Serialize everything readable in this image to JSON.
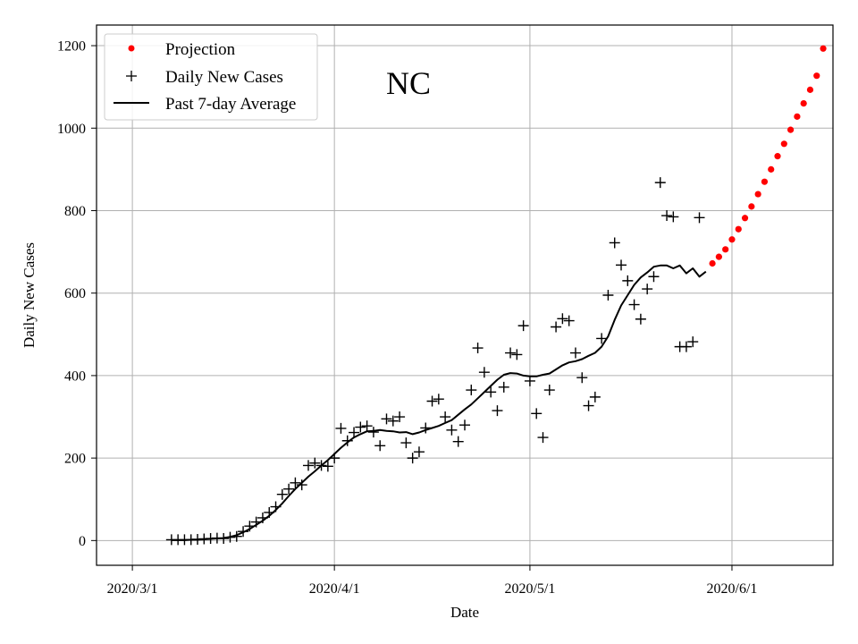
{
  "chart_data": {
    "type": "line",
    "title": "NC",
    "xlabel": "Date",
    "ylabel": "Daily New Cases",
    "xlim": [
      -5.5,
      107.5
    ],
    "ylim": [
      -60,
      1250
    ],
    "grid": true,
    "legend_position": "top-left",
    "x_ticks": [
      {
        "day": 0,
        "label": "2020/3/1"
      },
      {
        "day": 31,
        "label": "2020/4/1"
      },
      {
        "day": 61,
        "label": "2020/5/1"
      },
      {
        "day": 92,
        "label": "2020/6/1"
      }
    ],
    "y_ticks": [
      0,
      200,
      400,
      600,
      800,
      1000,
      1200
    ],
    "series": [
      {
        "name": "Projection",
        "style": "dots",
        "color": "#ff0000",
        "x": [
          89,
          90,
          91,
          92,
          93,
          94,
          95,
          96,
          97,
          98,
          99,
          100,
          101,
          102,
          103,
          104,
          105,
          106
        ],
        "y": [
          672,
          688,
          706,
          730,
          755,
          782,
          810,
          840,
          870,
          900,
          932,
          962,
          996,
          1028,
          1060,
          1093,
          1127,
          1193
        ]
      },
      {
        "name": "Daily New Cases",
        "style": "plus",
        "color": "#000000",
        "x": [
          6,
          7,
          8,
          9,
          10,
          11,
          12,
          13,
          14,
          15,
          16,
          17,
          18,
          19,
          20,
          21,
          22,
          23,
          24,
          25,
          26,
          27,
          28,
          29,
          30,
          31,
          32,
          33,
          34,
          35,
          36,
          37,
          38,
          39,
          40,
          41,
          42,
          43,
          44,
          45,
          46,
          47,
          48,
          49,
          50,
          51,
          52,
          53,
          54,
          55,
          56,
          57,
          58,
          59,
          60,
          61,
          62,
          63,
          64,
          65,
          66,
          67,
          68,
          69,
          70,
          71,
          72,
          73,
          74,
          75,
          76,
          77,
          78,
          79,
          80,
          81,
          82,
          83,
          84,
          85,
          86,
          87
        ],
        "y": [
          2,
          2,
          2,
          2,
          3,
          4,
          5,
          6,
          5,
          8,
          10,
          22,
          35,
          45,
          55,
          68,
          82,
          112,
          125,
          140,
          135,
          182,
          188,
          182,
          180,
          200,
          272,
          242,
          262,
          275,
          278,
          263,
          230,
          295,
          290,
          300,
          237,
          200,
          215,
          273,
          338,
          343,
          300,
          268,
          240,
          280,
          365,
          467,
          408,
          360,
          315,
          372,
          455,
          451,
          521,
          387,
          308,
          250,
          365,
          518,
          538,
          533,
          455,
          395,
          327,
          348,
          490,
          595,
          722,
          668,
          630,
          572,
          537,
          610,
          640,
          868,
          788,
          785,
          470,
          470,
          482,
          783
        ]
      },
      {
        "name": "Past 7-day Average",
        "style": "line",
        "color": "#000000",
        "x": [
          6,
          7,
          8,
          9,
          10,
          11,
          12,
          13,
          14,
          15,
          16,
          17,
          18,
          19,
          20,
          21,
          22,
          23,
          24,
          25,
          26,
          27,
          28,
          29,
          30,
          31,
          32,
          33,
          34,
          35,
          36,
          37,
          38,
          39,
          40,
          41,
          42,
          43,
          44,
          45,
          46,
          47,
          48,
          49,
          50,
          51,
          52,
          53,
          54,
          55,
          56,
          57,
          58,
          59,
          60,
          61,
          62,
          63,
          64,
          65,
          66,
          67,
          68,
          69,
          70,
          71,
          72,
          73,
          74,
          75,
          76,
          77,
          78,
          79,
          80,
          81,
          82,
          83,
          84,
          85,
          86,
          87,
          88
        ],
        "y": [
          1,
          1,
          1,
          2,
          2,
          3,
          4,
          5,
          6,
          9,
          13,
          20,
          28,
          38,
          48,
          60,
          74,
          90,
          108,
          125,
          140,
          155,
          168,
          182,
          195,
          210,
          225,
          238,
          250,
          258,
          265,
          266,
          268,
          266,
          265,
          262,
          263,
          258,
          262,
          268,
          273,
          278,
          285,
          292,
          305,
          318,
          330,
          345,
          360,
          375,
          390,
          402,
          406,
          405,
          400,
          398,
          398,
          402,
          405,
          415,
          425,
          432,
          435,
          440,
          448,
          455,
          470,
          495,
          535,
          570,
          595,
          620,
          638,
          650,
          664,
          667,
          667,
          660,
          667,
          648,
          660,
          640,
          652
        ]
      }
    ]
  }
}
